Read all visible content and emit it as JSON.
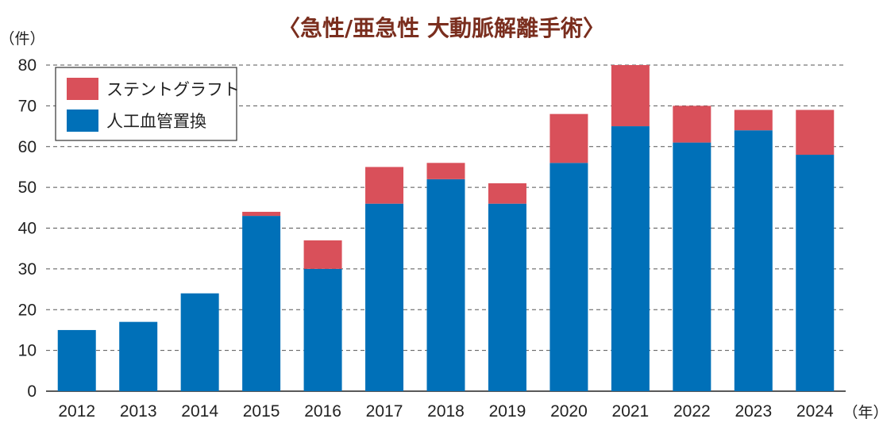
{
  "chart_data": {
    "type": "bar",
    "stacked": true,
    "title": "〈急性/亜急性 大動脈解離手術〉",
    "ylabel": "（件）",
    "xlabel": "（年）",
    "ylim": [
      0,
      80
    ],
    "yticks": [
      0,
      10,
      20,
      30,
      40,
      50,
      60,
      70,
      80
    ],
    "grid": "horizontal-dashed",
    "legend_position": "top-left",
    "categories": [
      "2012",
      "2013",
      "2014",
      "2015",
      "2016",
      "2017",
      "2018",
      "2019",
      "2020",
      "2021",
      "2022",
      "2023",
      "2024"
    ],
    "series": [
      {
        "name": "人工血管置換",
        "color": "#0070b8",
        "values": [
          15,
          17,
          24,
          43,
          30,
          46,
          52,
          46,
          56,
          65,
          61,
          64,
          58
        ]
      },
      {
        "name": "ステントグラフト",
        "color": "#d9505a",
        "values": [
          0,
          0,
          0,
          1,
          7,
          9,
          4,
          5,
          12,
          15,
          9,
          5,
          11
        ]
      }
    ],
    "title_color": "#7a2e1e"
  }
}
